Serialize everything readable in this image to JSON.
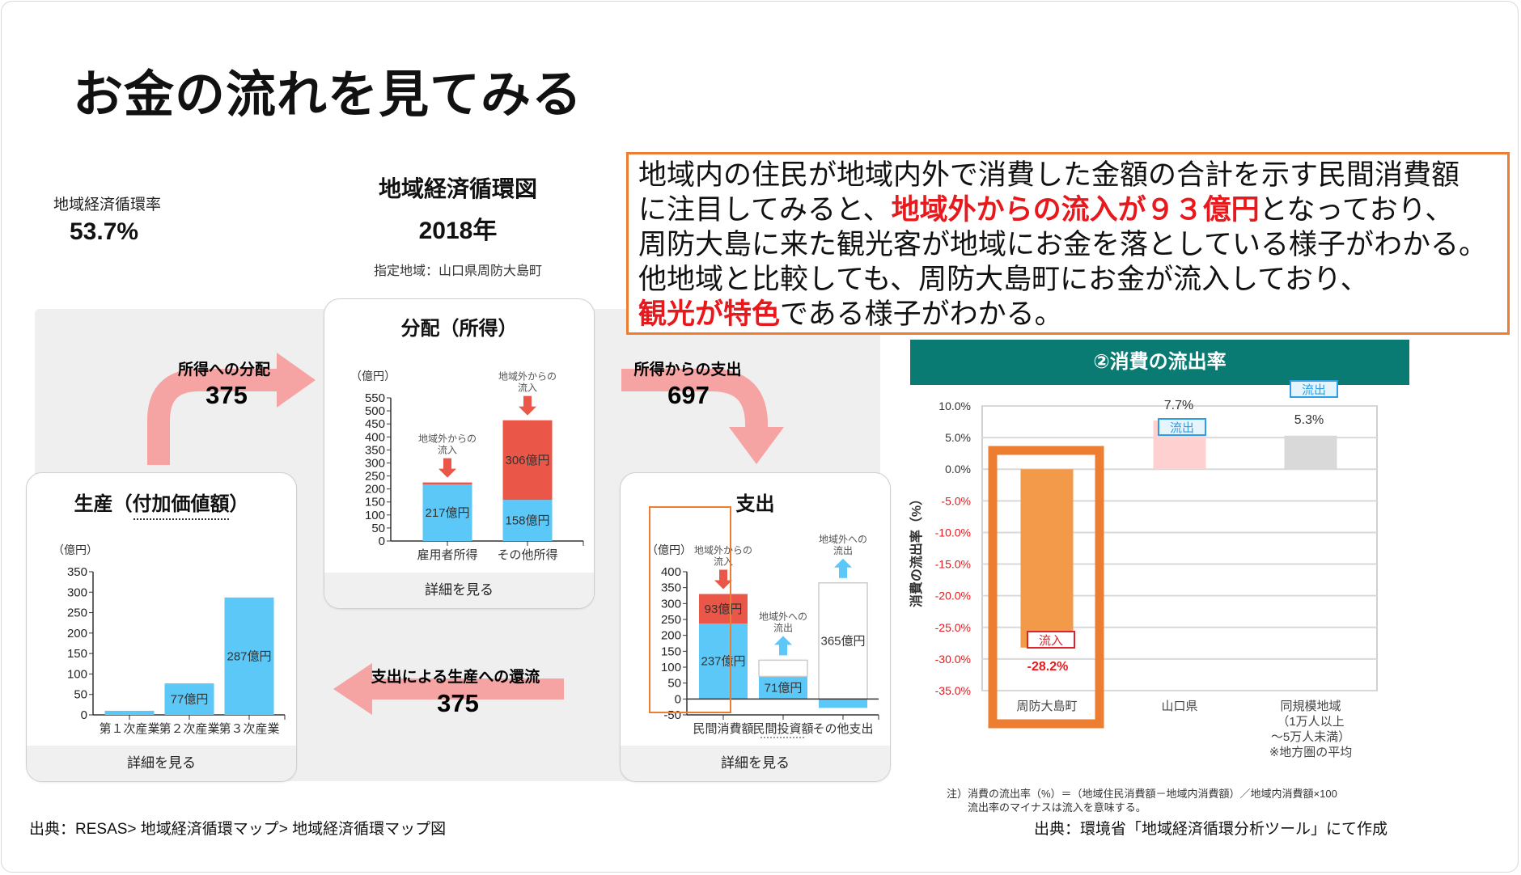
{
  "slide": {
    "title": "お金の流れを見てみる",
    "circulation_rate_label": "地域経済循環率",
    "circulation_rate_value": "53.7%",
    "diagram_title": "地域経済循環図",
    "diagram_year": "2018年",
    "diagram_region": "指定地域：山口県周防大島町",
    "detail_button": "詳細を見る",
    "source_left": "出典：RESAS> 地域経済循環マップ> 地域経済循環マップ図",
    "source_right": "出典：環境省「地域経済循環分析ツール」にて作成"
  },
  "flows": {
    "to_income": {
      "label": "所得への分配",
      "value": "375"
    },
    "from_income": {
      "label": "所得からの支出",
      "value": "697"
    },
    "to_production": {
      "label": "支出による生産への還流",
      "value": "375"
    },
    "color": "#f5a3a3"
  },
  "textbox": {
    "line1": "地域内の住民が地域内外で消費した金額の合計を示す民間消費額",
    "line2a": "に注目してみると、",
    "line2b": "地域外からの流入が９３億円",
    "line2c": "となっており、",
    "line3": "周防大島に来た観光客が地域にお金を落としている様子がわかる。",
    "line4": "他地域と比較しても、周防大島町にお金が流入しており、",
    "line5a": "観光が特色",
    "line5b": "である様子がわかる。",
    "border_color": "#ed7d31",
    "highlight_color": "#e8191c"
  },
  "right_panel": {
    "header": "②消費の流出率",
    "note_line1": "注）消費の流出率（%）＝（地域住民消費額－地域内消費額）／地域内消費額×100",
    "note_line2": "流出率のマイナスは流入を意味する。"
  },
  "chart_data": [
    {
      "id": "production",
      "type": "bar",
      "title": "生産（付加価値額）",
      "unit": "（億円）",
      "ylim": [
        0,
        350
      ],
      "yticks": [
        0,
        50,
        100,
        150,
        200,
        250,
        300,
        350
      ],
      "categories": [
        "第１次産業",
        "第２次産業",
        "第３次産業"
      ],
      "series": [
        {
          "values": [
            10,
            77,
            287
          ],
          "color": "#5bc8f8",
          "labels": [
            "",
            "77億円",
            "287億円"
          ]
        }
      ],
      "annotations": []
    },
    {
      "id": "distribution",
      "type": "bar",
      "stacked": true,
      "title": "分配（所得）",
      "unit": "（億円）",
      "ylim": [
        0,
        550
      ],
      "yticks": [
        0,
        50,
        100,
        150,
        200,
        250,
        300,
        350,
        400,
        450,
        500,
        550
      ],
      "categories": [
        "雇用者所得",
        "その他所得"
      ],
      "series": [
        {
          "values": [
            217,
            158
          ],
          "color": "#5bc8f8",
          "labels": [
            "217億円",
            "158億円"
          ]
        },
        {
          "values": [
            8,
            306
          ],
          "color": "#ea5748",
          "labels": [
            "",
            "306億円"
          ]
        }
      ],
      "annotations": [
        {
          "category": 0,
          "lines": [
            "地域外からの",
            "流入"
          ],
          "arrow": "down",
          "color": "#ea5748"
        },
        {
          "category": 1,
          "lines": [
            "地域外からの",
            "流入"
          ],
          "arrow": "down",
          "color": "#ea5748"
        }
      ]
    },
    {
      "id": "expenditure",
      "type": "bar",
      "stacked": true,
      "title": "支出",
      "unit": "（億円）",
      "ylim": [
        -50,
        400
      ],
      "yticks": [
        -50,
        0,
        50,
        100,
        150,
        200,
        250,
        300,
        350,
        400
      ],
      "categories": [
        "民間消費額",
        "民間投資額",
        "その他支出"
      ],
      "series": [
        {
          "values": [
            237,
            71,
            -28
          ],
          "color": "#5bc8f8",
          "labels": [
            "237億円",
            "71億円",
            ""
          ]
        },
        {
          "values": [
            93,
            0,
            0
          ],
          "color": "#ea5748",
          "labels": [
            "93億円",
            "",
            ""
          ]
        },
        {
          "values": [
            0,
            51,
            365
          ],
          "color": "#ffffff",
          "outline": "#cccccc",
          "labels": [
            "",
            "",
            "365億円"
          ]
        }
      ],
      "annotations": [
        {
          "category": 0,
          "lines": [
            "地域外からの",
            "流入"
          ],
          "arrow": "down",
          "color": "#ea5748"
        },
        {
          "category": 1,
          "lines": [
            "地域外への",
            "流出"
          ],
          "arrow": "up",
          "color": "#5bc8f8"
        },
        {
          "category": 2,
          "lines": [
            "地域外への",
            "流出"
          ],
          "arrow": "up",
          "color": "#5bc8f8"
        }
      ],
      "highlight_category": 0,
      "highlight_color": "#ed7d31"
    },
    {
      "id": "outflow_rate",
      "type": "bar",
      "ylabel": "消費の流出率（%）",
      "ylim": [
        -35,
        10
      ],
      "yticks": [
        10,
        5,
        0,
        -5,
        -10,
        -15,
        -20,
        -25,
        -30,
        -35
      ],
      "ytick_labels": [
        "10.0%",
        "5.0%",
        "0.0%",
        "-5.0%",
        "-10.0%",
        "-15.0%",
        "-20.0%",
        "-25.0%",
        "-30.0%",
        "-35.0%"
      ],
      "negative_tick_color": "#e8191c",
      "grid": true,
      "categories": [
        [
          "周防大島町"
        ],
        [
          "山口県"
        ],
        [
          "同規模地域",
          "（1万人以上",
          "～5万人未満）",
          "※地方圏の平均"
        ]
      ],
      "values": [
        -28.2,
        7.7,
        5.3
      ],
      "value_labels": [
        "-28.2%",
        "7.7%",
        "5.3%"
      ],
      "colors": [
        "#f39a4a",
        "#ffd0d0",
        "#d9d9d9"
      ],
      "tags": [
        "流入",
        "流出",
        "流出"
      ],
      "highlight_category": 0,
      "highlight_color": "#ed7d31"
    }
  ]
}
